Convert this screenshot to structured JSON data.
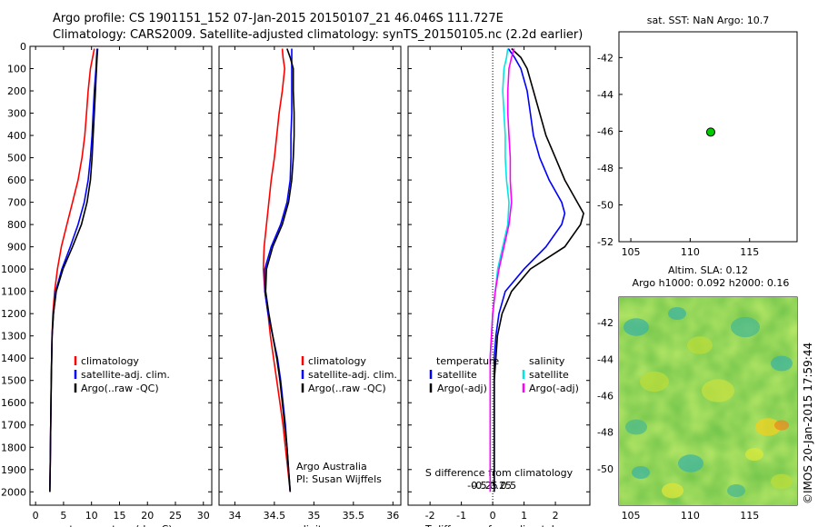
{
  "header": {
    "line1": "Argo profile: CS 1901151_152 07-Jan-2015 20150107_21 46.046S 111.727E",
    "line2": "Climatology: CARS2009. Satellite-adjusted climatology: synTS_20150105.nc (2.2d earlier)"
  },
  "colors": {
    "climatology": "#ff0000",
    "satellite": "#0000ff",
    "argo": "#000000",
    "satellite_s": "#00e5e5",
    "argo_s": "#ff00ff",
    "marker": "#00cc00"
  },
  "chart_data": [
    {
      "type": "line",
      "name": "temperature-panel",
      "xlabel": "temperature (deg C)",
      "xlim": [
        -1,
        31.5
      ],
      "xticks": [
        0,
        5,
        10,
        15,
        20,
        25,
        30
      ],
      "ylim": [
        2060,
        0
      ],
      "yticks": [
        0,
        100,
        200,
        300,
        400,
        500,
        600,
        700,
        800,
        900,
        1000,
        1100,
        1200,
        1300,
        1400,
        1500,
        1600,
        1700,
        1800,
        1900,
        2000
      ],
      "legend": [
        "climatology",
        "satellite-adj. clim.",
        "Argo(..raw -QC)"
      ],
      "series": [
        {
          "name": "climatology",
          "color": "#ff0000",
          "depth": [
            10,
            50,
            100,
            200,
            300,
            400,
            500,
            600,
            700,
            800,
            900,
            1000,
            1100,
            1200,
            1300,
            1500,
            1700,
            1900,
            2000
          ],
          "values": [
            10.5,
            10.2,
            9.8,
            9.4,
            9.1,
            8.8,
            8.3,
            7.6,
            6.6,
            5.6,
            4.6,
            3.9,
            3.4,
            3.1,
            2.95,
            2.8,
            2.7,
            2.6,
            2.55
          ]
        },
        {
          "name": "satellite-adj. clim.",
          "color": "#0000ff",
          "depth": [
            10,
            50,
            100,
            200,
            300,
            400,
            500,
            600,
            700,
            800,
            900,
            1000,
            1100,
            1200,
            1300,
            1500,
            1700,
            1900,
            2000
          ],
          "values": [
            11.0,
            10.9,
            10.8,
            10.5,
            10.3,
            10.1,
            9.8,
            9.4,
            8.7,
            7.6,
            6.2,
            4.7,
            3.6,
            3.2,
            2.95,
            2.8,
            2.7,
            2.6,
            2.55
          ]
        },
        {
          "name": "Argo(..raw -QC)",
          "color": "#000000",
          "depth": [
            10,
            50,
            100,
            200,
            300,
            400,
            500,
            600,
            700,
            800,
            900,
            1000,
            1100,
            1200,
            1300,
            1500,
            1700,
            1900,
            2000
          ],
          "values": [
            11.1,
            11.0,
            10.9,
            10.7,
            10.5,
            10.3,
            10.1,
            9.8,
            9.2,
            8.2,
            6.6,
            4.9,
            3.7,
            3.2,
            2.95,
            2.8,
            2.7,
            2.6,
            2.55
          ]
        }
      ]
    },
    {
      "type": "line",
      "name": "salinity-panel",
      "xlabel": "salinity",
      "xlim": [
        33.8,
        36.1
      ],
      "xticks": [
        34,
        34.5,
        35,
        35.5,
        36
      ],
      "ylim": [
        2060,
        0
      ],
      "legend": [
        "climatology",
        "satellite-adj. clim.",
        "Argo(..raw -QC)"
      ],
      "annotation": [
        "Argo Australia",
        "PI: Susan Wijffels"
      ],
      "series": [
        {
          "name": "climatology",
          "color": "#ff0000",
          "depth": [
            10,
            50,
            100,
            200,
            300,
            400,
            500,
            600,
            700,
            800,
            900,
            1000,
            1100,
            1200,
            1300,
            1400,
            1500,
            1600,
            1700,
            1800,
            1900,
            2000
          ],
          "values": [
            34.6,
            34.61,
            34.63,
            34.6,
            34.56,
            34.53,
            34.5,
            34.46,
            34.43,
            34.4,
            34.37,
            34.36,
            34.38,
            34.42,
            34.45,
            34.49,
            34.53,
            34.57,
            34.61,
            34.64,
            34.67,
            34.7
          ]
        },
        {
          "name": "satellite-adj. clim.",
          "color": "#0000ff",
          "depth": [
            10,
            50,
            100,
            200,
            300,
            400,
            500,
            600,
            700,
            800,
            900,
            1000,
            1100,
            1200,
            1300,
            1400,
            1500,
            1600,
            1700,
            1800,
            1900,
            2000
          ],
          "values": [
            34.72,
            34.72,
            34.72,
            34.72,
            34.72,
            34.71,
            34.71,
            34.7,
            34.66,
            34.58,
            34.46,
            34.38,
            34.38,
            34.42,
            34.48,
            34.54,
            34.58,
            34.61,
            34.64,
            34.66,
            34.68,
            34.7
          ]
        },
        {
          "name": "Argo(..raw -QC)",
          "color": "#000000",
          "depth": [
            10,
            50,
            100,
            200,
            300,
            400,
            500,
            600,
            700,
            800,
            900,
            1000,
            1100,
            1200,
            1300,
            1400,
            1500,
            1600,
            1700,
            1800,
            1900,
            2000
          ],
          "values": [
            34.66,
            34.7,
            34.74,
            34.74,
            34.75,
            34.75,
            34.74,
            34.72,
            34.68,
            34.6,
            34.48,
            34.4,
            34.39,
            34.43,
            34.48,
            34.53,
            34.57,
            34.6,
            34.63,
            34.66,
            34.68,
            34.7
          ]
        }
      ]
    },
    {
      "type": "line",
      "name": "difference-panel",
      "xlabel": "T difference from climatology",
      "xlabel2": "S difference from climatology",
      "xlim": [
        -2.7,
        3.1
      ],
      "xticks": [
        -2,
        -1,
        0,
        1,
        2
      ],
      "xticks2": [
        -0.5,
        -0.25,
        0,
        0.25,
        0.5
      ],
      "ylim": [
        2060,
        0
      ],
      "legend_temperature": {
        "title": "temperature",
        "entries": [
          "satellite",
          "Argo(-adj)"
        ]
      },
      "legend_salinity": {
        "title": "salinity",
        "entries": [
          "satellite",
          "Argo(-adj)"
        ]
      },
      "series": [
        {
          "name": "temperature satellite",
          "color": "#0000ff",
          "depth": [
            10,
            50,
            100,
            200,
            300,
            400,
            500,
            600,
            700,
            750,
            800,
            900,
            1000,
            1100,
            1200,
            1300,
            1400,
            1500,
            1600,
            1800,
            2000
          ],
          "values": [
            0.5,
            0.7,
            0.9,
            1.1,
            1.2,
            1.3,
            1.5,
            1.8,
            2.2,
            2.3,
            2.2,
            1.7,
            1.0,
            0.4,
            0.2,
            0.1,
            0.05,
            0.05,
            0.05,
            0.05,
            0.05
          ]
        },
        {
          "name": "temperature Argo(-adj)",
          "color": "#000000",
          "depth": [
            10,
            50,
            100,
            200,
            300,
            400,
            500,
            600,
            700,
            750,
            800,
            900,
            1000,
            1100,
            1200,
            1300,
            1400,
            1500,
            1600,
            1800,
            2000
          ],
          "values": [
            0.6,
            0.9,
            1.1,
            1.3,
            1.5,
            1.7,
            2.0,
            2.3,
            2.7,
            2.9,
            2.8,
            2.3,
            1.2,
            0.6,
            0.3,
            0.15,
            0.1,
            0.05,
            0.05,
            0.05,
            0.05
          ]
        },
        {
          "name": "salinity satellite",
          "color": "#00e5e5",
          "depth": [
            10,
            50,
            100,
            200,
            300,
            400,
            500,
            600,
            700,
            800,
            900,
            1000,
            1100,
            1200,
            1300,
            1400,
            1500,
            1600,
            1700,
            1800,
            1900,
            2000
          ],
          "values": [
            0.12,
            0.11,
            0.09,
            0.08,
            0.09,
            0.1,
            0.1,
            0.11,
            0.13,
            0.12,
            0.08,
            0.04,
            0.02,
            0.0,
            -0.01,
            -0.02,
            -0.02,
            -0.02,
            -0.02,
            -0.02,
            -0.02,
            -0.02
          ]
        },
        {
          "name": "salinity Argo(-adj)",
          "color": "#ff00ff",
          "depth": [
            10,
            50,
            100,
            200,
            300,
            400,
            500,
            600,
            700,
            800,
            900,
            1000,
            1100,
            1200,
            1300,
            1400,
            1500,
            1600,
            1700,
            1800,
            1900,
            2000
          ],
          "values": [
            0.17,
            0.15,
            0.13,
            0.12,
            0.12,
            0.13,
            0.14,
            0.14,
            0.15,
            0.13,
            0.09,
            0.05,
            0.02,
            0.0,
            -0.01,
            -0.02,
            -0.02,
            -0.02,
            -0.02,
            -0.02,
            -0.02,
            -0.02
          ]
        }
      ]
    },
    {
      "type": "scatter",
      "name": "sst-map",
      "title": "sat. SST: NaN Argo: 10.7",
      "xlim": [
        104,
        119
      ],
      "xticks": [
        105,
        110,
        115
      ],
      "ylim": [
        -52,
        -40.6
      ],
      "yticks": [
        -52,
        -50,
        -48,
        -46,
        -44,
        -42
      ],
      "points": [
        {
          "x": 111.727,
          "y": -46.046
        }
      ]
    },
    {
      "type": "heatmap",
      "name": "sla-map",
      "title1": "Altim. SLA: 0.12",
      "title2": "Argo h1000: 0.092 h2000: 0.16",
      "xlim": [
        104,
        119
      ],
      "xticks": [
        105,
        110,
        115
      ],
      "ylim": [
        -52,
        -40.6
      ],
      "yticks": [
        -50,
        -48,
        -46,
        -44,
        -42
      ],
      "points": [
        {
          "x": 111.727,
          "y": -46.046
        }
      ]
    }
  ],
  "side_label": "©IMOS 20-Jan-2015 17:59:44"
}
